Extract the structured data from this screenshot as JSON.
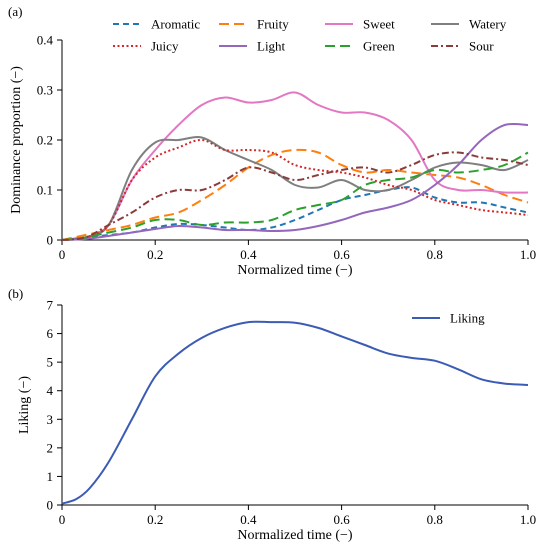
{
  "chart_data": [
    {
      "panel_label": "(a)",
      "type": "line",
      "xlabel": "Normalized time (−)",
      "ylabel": "Dominance proportion (−)",
      "xlim": [
        0,
        1
      ],
      "ylim": [
        0,
        0.4
      ],
      "xticks": [
        "0",
        "0.2",
        "0.4",
        "0.6",
        "0.8",
        "1.0"
      ],
      "yticks": [
        "0",
        "0.1",
        "0.2",
        "0.3",
        "0.4"
      ],
      "legend": "top, 4 columns",
      "series": [
        {
          "name": "Aromatic",
          "color": "#1f77b4",
          "dash": "dashed",
          "points": [
            [
              0,
              0
            ],
            [
              0.05,
              0.005
            ],
            [
              0.1,
              0.01
            ],
            [
              0.15,
              0.015
            ],
            [
              0.2,
              0.025
            ],
            [
              0.25,
              0.032
            ],
            [
              0.3,
              0.03
            ],
            [
              0.35,
              0.025
            ],
            [
              0.4,
              0.02
            ],
            [
              0.45,
              0.025
            ],
            [
              0.5,
              0.04
            ],
            [
              0.55,
              0.06
            ],
            [
              0.6,
              0.08
            ],
            [
              0.65,
              0.09
            ],
            [
              0.7,
              0.1
            ],
            [
              0.75,
              0.105
            ],
            [
              0.8,
              0.085
            ],
            [
              0.85,
              0.075
            ],
            [
              0.9,
              0.075
            ],
            [
              0.95,
              0.065
            ],
            [
              1.0,
              0.055
            ]
          ]
        },
        {
          "name": "Fruity",
          "color": "#ff7f0e",
          "dash": "longdash",
          "points": [
            [
              0,
              0
            ],
            [
              0.05,
              0.01
            ],
            [
              0.1,
              0.02
            ],
            [
              0.15,
              0.03
            ],
            [
              0.2,
              0.045
            ],
            [
              0.25,
              0.055
            ],
            [
              0.3,
              0.08
            ],
            [
              0.35,
              0.11
            ],
            [
              0.4,
              0.145
            ],
            [
              0.45,
              0.17
            ],
            [
              0.5,
              0.18
            ],
            [
              0.55,
              0.175
            ],
            [
              0.6,
              0.15
            ],
            [
              0.65,
              0.135
            ],
            [
              0.7,
              0.14
            ],
            [
              0.75,
              0.135
            ],
            [
              0.8,
              0.13
            ],
            [
              0.85,
              0.125
            ],
            [
              0.9,
              0.11
            ],
            [
              0.95,
              0.09
            ],
            [
              1.0,
              0.075
            ]
          ]
        },
        {
          "name": "Sweet",
          "color": "#e377c2",
          "dash": "solid",
          "points": [
            [
              0,
              0
            ],
            [
              0.05,
              0.005
            ],
            [
              0.1,
              0.03
            ],
            [
              0.15,
              0.12
            ],
            [
              0.2,
              0.18
            ],
            [
              0.25,
              0.23
            ],
            [
              0.3,
              0.27
            ],
            [
              0.35,
              0.285
            ],
            [
              0.4,
              0.275
            ],
            [
              0.45,
              0.28
            ],
            [
              0.5,
              0.295
            ],
            [
              0.55,
              0.27
            ],
            [
              0.6,
              0.255
            ],
            [
              0.65,
              0.255
            ],
            [
              0.7,
              0.24
            ],
            [
              0.75,
              0.2
            ],
            [
              0.8,
              0.12
            ],
            [
              0.85,
              0.1
            ],
            [
              0.9,
              0.1
            ],
            [
              0.95,
              0.095
            ],
            [
              1.0,
              0.095
            ]
          ]
        },
        {
          "name": "Watery",
          "color": "#7f7f7f",
          "dash": "solid",
          "points": [
            [
              0,
              0
            ],
            [
              0.05,
              0.005
            ],
            [
              0.1,
              0.03
            ],
            [
              0.15,
              0.14
            ],
            [
              0.2,
              0.195
            ],
            [
              0.25,
              0.2
            ],
            [
              0.3,
              0.205
            ],
            [
              0.35,
              0.18
            ],
            [
              0.4,
              0.16
            ],
            [
              0.45,
              0.14
            ],
            [
              0.5,
              0.11
            ],
            [
              0.55,
              0.105
            ],
            [
              0.6,
              0.12
            ],
            [
              0.65,
              0.1
            ],
            [
              0.7,
              0.1
            ],
            [
              0.75,
              0.12
            ],
            [
              0.8,
              0.145
            ],
            [
              0.85,
              0.155
            ],
            [
              0.9,
              0.15
            ],
            [
              0.95,
              0.14
            ],
            [
              1.0,
              0.16
            ]
          ]
        },
        {
          "name": "Juicy",
          "color": "#d62728",
          "dash": "dotted",
          "points": [
            [
              0,
              0
            ],
            [
              0.05,
              0.005
            ],
            [
              0.1,
              0.03
            ],
            [
              0.15,
              0.12
            ],
            [
              0.2,
              0.165
            ],
            [
              0.25,
              0.185
            ],
            [
              0.3,
              0.2
            ],
            [
              0.35,
              0.18
            ],
            [
              0.4,
              0.18
            ],
            [
              0.45,
              0.175
            ],
            [
              0.5,
              0.15
            ],
            [
              0.55,
              0.14
            ],
            [
              0.6,
              0.135
            ],
            [
              0.65,
              0.125
            ],
            [
              0.7,
              0.11
            ],
            [
              0.75,
              0.1
            ],
            [
              0.8,
              0.08
            ],
            [
              0.85,
              0.07
            ],
            [
              0.9,
              0.06
            ],
            [
              0.95,
              0.055
            ],
            [
              1.0,
              0.05
            ]
          ]
        },
        {
          "name": "Light",
          "color": "#9467bd",
          "dash": "solid",
          "points": [
            [
              0,
              0
            ],
            [
              0.05,
              0.002
            ],
            [
              0.1,
              0.008
            ],
            [
              0.15,
              0.015
            ],
            [
              0.2,
              0.022
            ],
            [
              0.25,
              0.028
            ],
            [
              0.3,
              0.025
            ],
            [
              0.35,
              0.02
            ],
            [
              0.4,
              0.02
            ],
            [
              0.45,
              0.018
            ],
            [
              0.5,
              0.02
            ],
            [
              0.55,
              0.028
            ],
            [
              0.6,
              0.04
            ],
            [
              0.65,
              0.055
            ],
            [
              0.7,
              0.065
            ],
            [
              0.75,
              0.08
            ],
            [
              0.8,
              0.11
            ],
            [
              0.85,
              0.15
            ],
            [
              0.9,
              0.2
            ],
            [
              0.95,
              0.23
            ],
            [
              1.0,
              0.23
            ]
          ]
        },
        {
          "name": "Green",
          "color": "#2ca02c",
          "dash": "longdash",
          "points": [
            [
              0,
              0
            ],
            [
              0.05,
              0.005
            ],
            [
              0.1,
              0.015
            ],
            [
              0.15,
              0.025
            ],
            [
              0.2,
              0.04
            ],
            [
              0.25,
              0.04
            ],
            [
              0.3,
              0.03
            ],
            [
              0.35,
              0.035
            ],
            [
              0.4,
              0.035
            ],
            [
              0.45,
              0.04
            ],
            [
              0.5,
              0.06
            ],
            [
              0.55,
              0.07
            ],
            [
              0.6,
              0.08
            ],
            [
              0.65,
              0.11
            ],
            [
              0.7,
              0.12
            ],
            [
              0.75,
              0.125
            ],
            [
              0.8,
              0.14
            ],
            [
              0.85,
              0.135
            ],
            [
              0.9,
              0.14
            ],
            [
              0.95,
              0.15
            ],
            [
              1.0,
              0.175
            ]
          ]
        },
        {
          "name": "Sour",
          "color": "#8c3b3b",
          "dash": "dashdot",
          "points": [
            [
              0,
              0
            ],
            [
              0.05,
              0.005
            ],
            [
              0.1,
              0.03
            ],
            [
              0.15,
              0.055
            ],
            [
              0.2,
              0.085
            ],
            [
              0.25,
              0.1
            ],
            [
              0.3,
              0.1
            ],
            [
              0.35,
              0.12
            ],
            [
              0.4,
              0.145
            ],
            [
              0.45,
              0.135
            ],
            [
              0.5,
              0.12
            ],
            [
              0.55,
              0.13
            ],
            [
              0.6,
              0.14
            ],
            [
              0.65,
              0.145
            ],
            [
              0.7,
              0.135
            ],
            [
              0.75,
              0.15
            ],
            [
              0.8,
              0.17
            ],
            [
              0.85,
              0.175
            ],
            [
              0.9,
              0.165
            ],
            [
              0.95,
              0.16
            ],
            [
              1.0,
              0.15
            ]
          ]
        }
      ]
    },
    {
      "panel_label": "(b)",
      "type": "line",
      "xlabel": "Normalized time (−)",
      "ylabel": "Liking (−)",
      "xlim": [
        0,
        1
      ],
      "ylim": [
        0,
        7
      ],
      "xticks": [
        "0",
        "0.2",
        "0.4",
        "0.6",
        "0.8",
        "1.0"
      ],
      "yticks": [
        "0",
        "1",
        "2",
        "3",
        "4",
        "5",
        "6",
        "7"
      ],
      "legend": "top-right",
      "series": [
        {
          "name": "Liking",
          "color": "#3b5bb5",
          "dash": "solid",
          "points": [
            [
              0,
              0.05
            ],
            [
              0.03,
              0.2
            ],
            [
              0.06,
              0.6
            ],
            [
              0.1,
              1.5
            ],
            [
              0.15,
              3.0
            ],
            [
              0.2,
              4.5
            ],
            [
              0.25,
              5.3
            ],
            [
              0.3,
              5.85
            ],
            [
              0.35,
              6.2
            ],
            [
              0.4,
              6.4
            ],
            [
              0.45,
              6.4
            ],
            [
              0.5,
              6.38
            ],
            [
              0.55,
              6.2
            ],
            [
              0.6,
              5.9
            ],
            [
              0.65,
              5.6
            ],
            [
              0.7,
              5.3
            ],
            [
              0.75,
              5.15
            ],
            [
              0.8,
              5.05
            ],
            [
              0.85,
              4.75
            ],
            [
              0.9,
              4.4
            ],
            [
              0.95,
              4.25
            ],
            [
              1.0,
              4.2
            ]
          ]
        }
      ]
    }
  ]
}
